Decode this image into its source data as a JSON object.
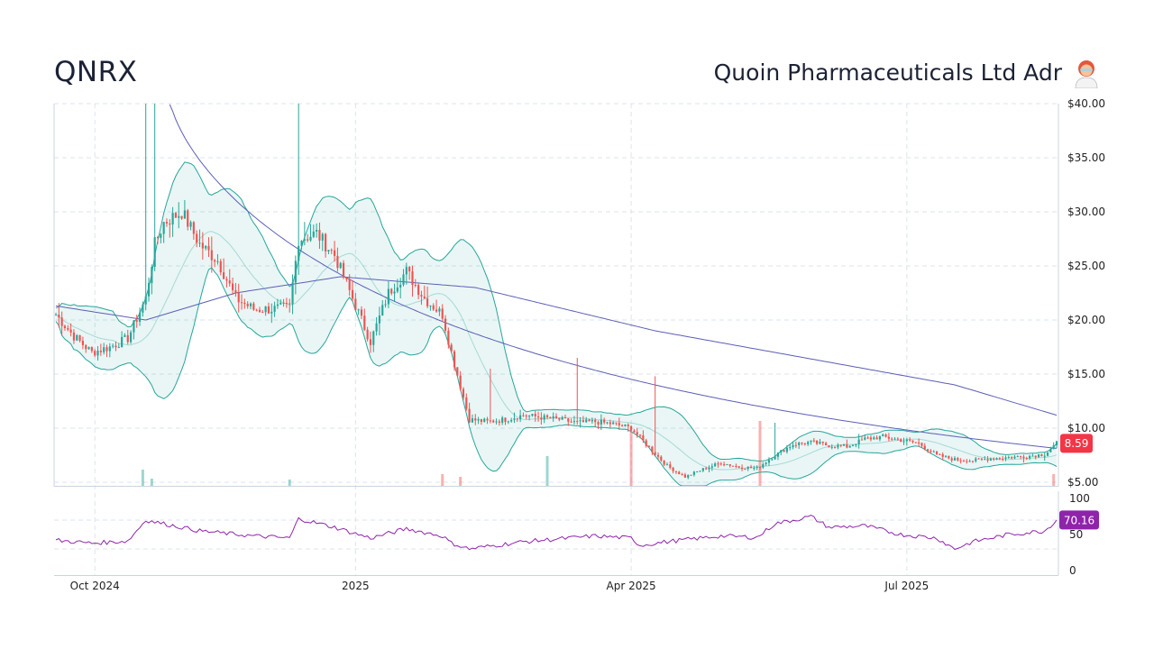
{
  "header": {
    "ticker": "QNRX",
    "company": "Quoin Pharmaceuticals Ltd Adr",
    "company_icon": "scientist-emoji-icon"
  },
  "chart_data": {
    "type": "candlestick",
    "price_axis": {
      "min": 5,
      "max": 40,
      "ticks": [
        "$40.00",
        "$35.00",
        "$30.00",
        "$25.00",
        "$20.00",
        "$15.00",
        "$10.00",
        "$5.00"
      ],
      "tick_values": [
        40,
        35,
        30,
        25,
        20,
        15,
        10,
        5
      ]
    },
    "rsi_axis": {
      "min": 0,
      "max": 100,
      "ticks": [
        "100",
        "50",
        "0"
      ],
      "tick_values": [
        100,
        50,
        0
      ]
    },
    "x_axis": {
      "labels": [
        "Oct 2024",
        "2025",
        "Apr 2025",
        "Jul 2025"
      ]
    },
    "last_price": "8.59",
    "last_rsi": "70.16",
    "colors": {
      "up": "#26a69a",
      "down": "#ef5350",
      "band": "#26a69a",
      "ma200": "#5c5fb8",
      "rsi": "#8e24aa",
      "price_badge": "#f23645",
      "rsi_badge": "#8e24aa"
    },
    "indicators": [
      "Bollinger Bands",
      "200-day moving average",
      "RSI"
    ],
    "price_series": [
      {
        "i": 0,
        "c": 20.5
      },
      {
        "i": 6,
        "c": 18.5
      },
      {
        "i": 12,
        "c": 17.0
      },
      {
        "i": 18,
        "c": 17.5
      },
      {
        "i": 24,
        "c": 18.3
      },
      {
        "i": 30,
        "c": 22.0
      },
      {
        "i": 33,
        "c": 27.0
      },
      {
        "i": 36,
        "c": 29.0
      },
      {
        "i": 42,
        "c": 30.0
      },
      {
        "i": 48,
        "c": 27.0
      },
      {
        "i": 54,
        "c": 25.5
      },
      {
        "i": 60,
        "c": 22.0
      },
      {
        "i": 66,
        "c": 21.0
      },
      {
        "i": 72,
        "c": 21.0
      },
      {
        "i": 78,
        "c": 21.2
      },
      {
        "i": 81,
        "c": 27.5
      },
      {
        "i": 87,
        "c": 28.0
      },
      {
        "i": 93,
        "c": 26.0
      },
      {
        "i": 99,
        "c": 22.0
      },
      {
        "i": 105,
        "c": 18.0
      },
      {
        "i": 111,
        "c": 22.5
      },
      {
        "i": 117,
        "c": 24.5
      },
      {
        "i": 123,
        "c": 22.0
      },
      {
        "i": 129,
        "c": 20.5
      },
      {
        "i": 132,
        "c": 17.0
      },
      {
        "i": 138,
        "c": 10.8
      },
      {
        "i": 144,
        "c": 10.6
      },
      {
        "i": 150,
        "c": 10.8
      },
      {
        "i": 156,
        "c": 11.2
      },
      {
        "i": 162,
        "c": 11.0
      },
      {
        "i": 168,
        "c": 10.8
      },
      {
        "i": 174,
        "c": 10.5
      },
      {
        "i": 180,
        "c": 10.6
      },
      {
        "i": 186,
        "c": 10.4
      },
      {
        "i": 192,
        "c": 10.0
      },
      {
        "i": 198,
        "c": 8.2
      },
      {
        "i": 204,
        "c": 6.5
      },
      {
        "i": 210,
        "c": 5.5
      },
      {
        "i": 216,
        "c": 6.2
      },
      {
        "i": 222,
        "c": 6.8
      },
      {
        "i": 228,
        "c": 6.4
      },
      {
        "i": 234,
        "c": 6.3
      },
      {
        "i": 240,
        "c": 7.5
      },
      {
        "i": 246,
        "c": 8.5
      },
      {
        "i": 252,
        "c": 8.7
      },
      {
        "i": 258,
        "c": 8.4
      },
      {
        "i": 264,
        "c": 8.3
      },
      {
        "i": 270,
        "c": 9.0
      },
      {
        "i": 276,
        "c": 9.2
      },
      {
        "i": 282,
        "c": 8.9
      },
      {
        "i": 288,
        "c": 8.6
      },
      {
        "i": 294,
        "c": 7.5
      },
      {
        "i": 300,
        "c": 7.1
      },
      {
        "i": 306,
        "c": 7.0
      },
      {
        "i": 312,
        "c": 7.2
      },
      {
        "i": 318,
        "c": 7.3
      },
      {
        "i": 324,
        "c": 7.4
      },
      {
        "i": 330,
        "c": 7.6
      },
      {
        "i": 334,
        "c": 8.59
      }
    ]
  }
}
